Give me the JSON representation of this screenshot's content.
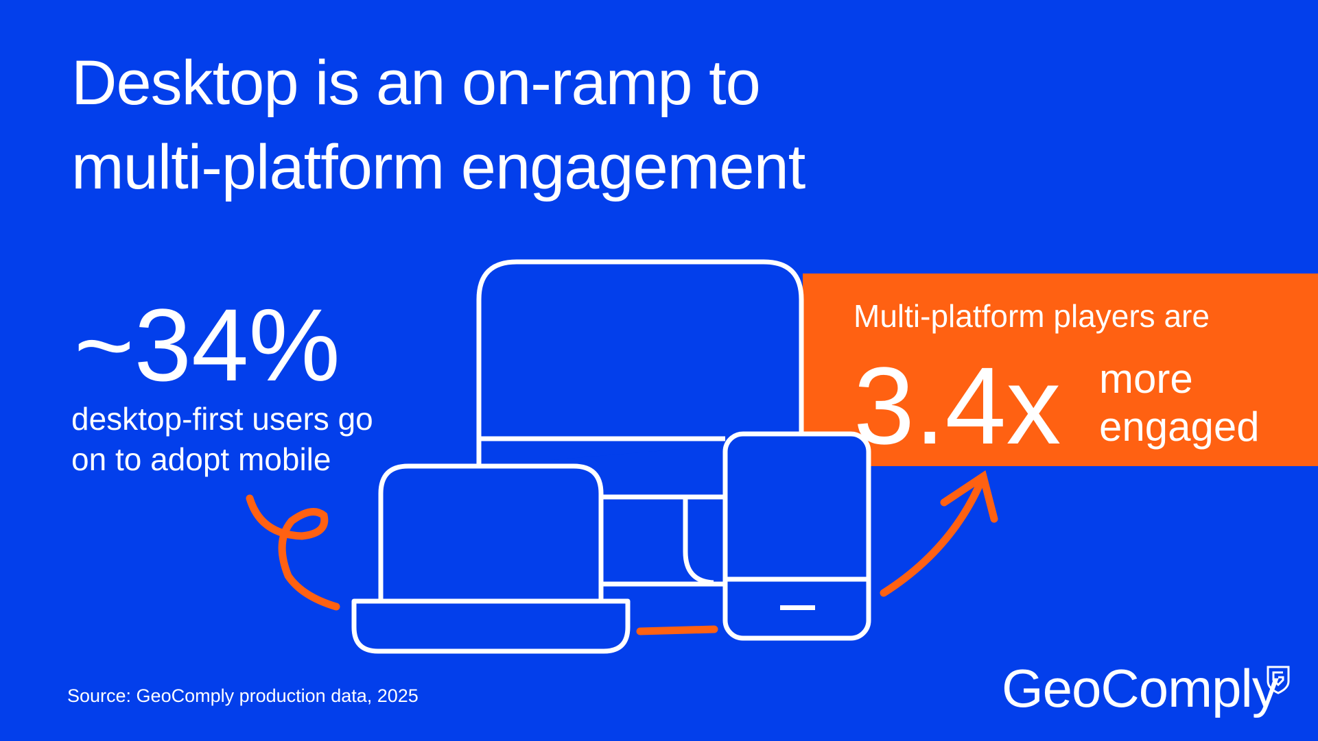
{
  "title": {
    "line1": "Desktop is an on-ramp to",
    "line2": "multi-platform engagement"
  },
  "stat_left": {
    "value": "~34%",
    "line1": "desktop-first users go",
    "line2": "on to adopt mobile"
  },
  "stat_right": {
    "intro": "Multi-platform players are",
    "value": "3.4x",
    "line1": "more",
    "line2": "engaged"
  },
  "source": "Source: GeoComply production data, 2025",
  "logo": {
    "text": "GeoComply"
  },
  "colors": {
    "background": "#033FEB",
    "accent": "#FF6112",
    "line": "#FFFFFF"
  }
}
